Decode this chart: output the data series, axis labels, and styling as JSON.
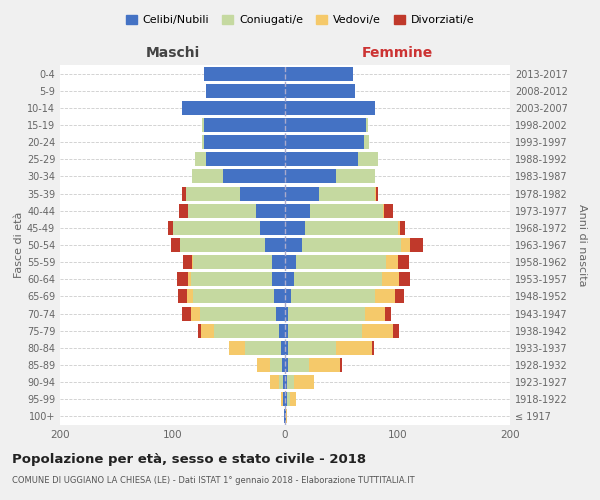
{
  "age_groups": [
    "100+",
    "95-99",
    "90-94",
    "85-89",
    "80-84",
    "75-79",
    "70-74",
    "65-69",
    "60-64",
    "55-59",
    "50-54",
    "45-49",
    "40-44",
    "35-39",
    "30-34",
    "25-29",
    "20-24",
    "15-19",
    "10-14",
    "5-9",
    "0-4"
  ],
  "birth_years": [
    "≤ 1917",
    "1918-1922",
    "1923-1927",
    "1928-1932",
    "1933-1937",
    "1938-1942",
    "1943-1947",
    "1948-1952",
    "1953-1957",
    "1958-1962",
    "1963-1967",
    "1968-1972",
    "1973-1977",
    "1978-1982",
    "1983-1987",
    "1988-1992",
    "1993-1997",
    "1998-2002",
    "2003-2007",
    "2008-2012",
    "2013-2017"
  ],
  "colors": {
    "celibi": "#4472c4",
    "coniugati": "#c5d9a0",
    "vedovi": "#f5c96a",
    "divorziati": "#c0392b"
  },
  "male": {
    "celibi": [
      1,
      2,
      2,
      3,
      4,
      5,
      8,
      10,
      12,
      12,
      18,
      22,
      26,
      40,
      55,
      70,
      72,
      72,
      92,
      70,
      72
    ],
    "coniugati": [
      0,
      0,
      3,
      10,
      32,
      58,
      68,
      72,
      72,
      70,
      75,
      78,
      60,
      48,
      28,
      10,
      2,
      2,
      0,
      0,
      0
    ],
    "vedovi": [
      0,
      2,
      8,
      12,
      14,
      12,
      8,
      5,
      2,
      1,
      0,
      0,
      0,
      0,
      0,
      0,
      0,
      0,
      0,
      0,
      0
    ],
    "divorziati": [
      0,
      0,
      0,
      0,
      0,
      2,
      8,
      8,
      10,
      8,
      8,
      4,
      8,
      4,
      0,
      0,
      0,
      0,
      0,
      0,
      0
    ]
  },
  "female": {
    "celibi": [
      1,
      2,
      2,
      3,
      3,
      3,
      3,
      5,
      8,
      10,
      15,
      18,
      22,
      30,
      45,
      65,
      70,
      72,
      80,
      62,
      60
    ],
    "coniugati": [
      0,
      2,
      6,
      18,
      42,
      65,
      68,
      75,
      78,
      80,
      88,
      82,
      65,
      50,
      35,
      18,
      5,
      2,
      0,
      0,
      0
    ],
    "vedovi": [
      1,
      6,
      18,
      28,
      32,
      28,
      18,
      18,
      15,
      10,
      8,
      2,
      1,
      1,
      0,
      0,
      0,
      0,
      0,
      0,
      0
    ],
    "divorziati": [
      0,
      0,
      0,
      2,
      2,
      5,
      5,
      8,
      10,
      10,
      12,
      5,
      8,
      2,
      0,
      0,
      0,
      0,
      0,
      0,
      0
    ]
  },
  "title": "Popolazione per età, sesso e stato civile - 2018",
  "subtitle": "COMUNE DI UGGIANO LA CHIESA (LE) - Dati ISTAT 1° gennaio 2018 - Elaborazione TUTTITALIA.IT",
  "xlabel_left": "Maschi",
  "xlabel_right": "Femmine",
  "ylabel_left": "Fasce di età",
  "ylabel_right": "Anni di nascita",
  "legend_labels": [
    "Celibi/Nubili",
    "Coniugati/e",
    "Vedovi/e",
    "Divorziati/e"
  ],
  "xlim": 200,
  "background_color": "#f0f0f0",
  "plot_bg": "#ffffff"
}
